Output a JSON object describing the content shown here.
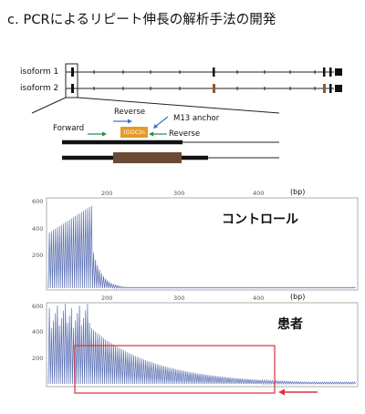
{
  "title": "c. PCRによるリピート伸長の解析手法の開発",
  "isoforms": {
    "labels": [
      "isoform 1",
      "isoform 2"
    ]
  },
  "primer_diagram": {
    "forward": "Forward",
    "reverse_top": "Reverse",
    "reverse_bottom": "Reverse",
    "m13": "M13 anchor",
    "repeat": "(GGC)n"
  },
  "colors": {
    "primer_blue": "#3a6fd0",
    "primer_green": "#2a8a3a",
    "repeat_orange": "#e39a2c",
    "exon_brown": "#8a5a36",
    "expansion_brown": "#6b4a33",
    "trace": "#5a6fb2",
    "highlight": "#d9323c",
    "arrow": "#d9323c"
  },
  "panels": [
    {
      "label": "コントロール",
      "unit": "(bp)",
      "x_ticks": [
        "200",
        "300",
        "400"
      ],
      "y_ticks": [
        "600",
        "400",
        "200"
      ]
    },
    {
      "label": "患者",
      "unit": "(bp)",
      "x_ticks": [
        "200",
        "300",
        "400"
      ],
      "y_ticks": [
        "600",
        "400",
        "200"
      ]
    }
  ]
}
